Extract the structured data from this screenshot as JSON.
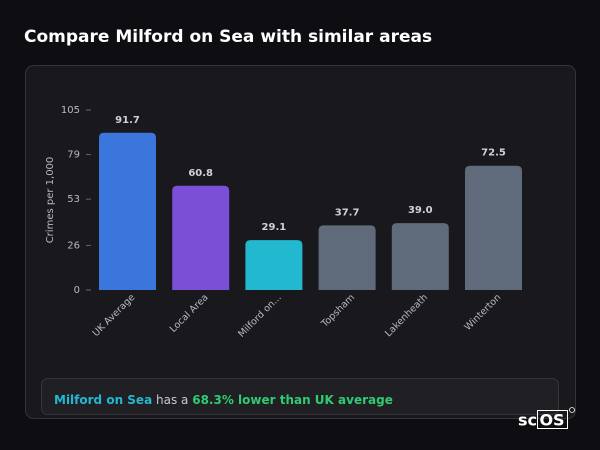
{
  "chart_data": {
    "type": "bar",
    "title": "Compare Milford on Sea with similar areas",
    "y_label": "Crimes per 1,000",
    "categories": [
      "UK Average",
      "Local Area",
      "Milford on...",
      "Topsham",
      "Lakenheath",
      "Winterton"
    ],
    "values": [
      91.7,
      60.8,
      29.1,
      37.7,
      39.0,
      72.5
    ],
    "value_labels": [
      "91.7",
      "60.8",
      "29.1",
      "37.7",
      "39.0",
      "72.5"
    ],
    "colors": [
      "#3b76dc",
      "#7b4fd6",
      "#22b8cf",
      "#5f6a7a",
      "#5f6a7a",
      "#5f6a7a"
    ],
    "ylim": [
      0,
      105
    ],
    "yticks": [
      0,
      26,
      53,
      79,
      105
    ],
    "grid": false
  },
  "summary": {
    "area": "Milford on Sea",
    "connector": "has a",
    "comparison": "68.3% lower than UK average"
  },
  "logo": {
    "prefix": "sc",
    "boxed": "OS"
  }
}
